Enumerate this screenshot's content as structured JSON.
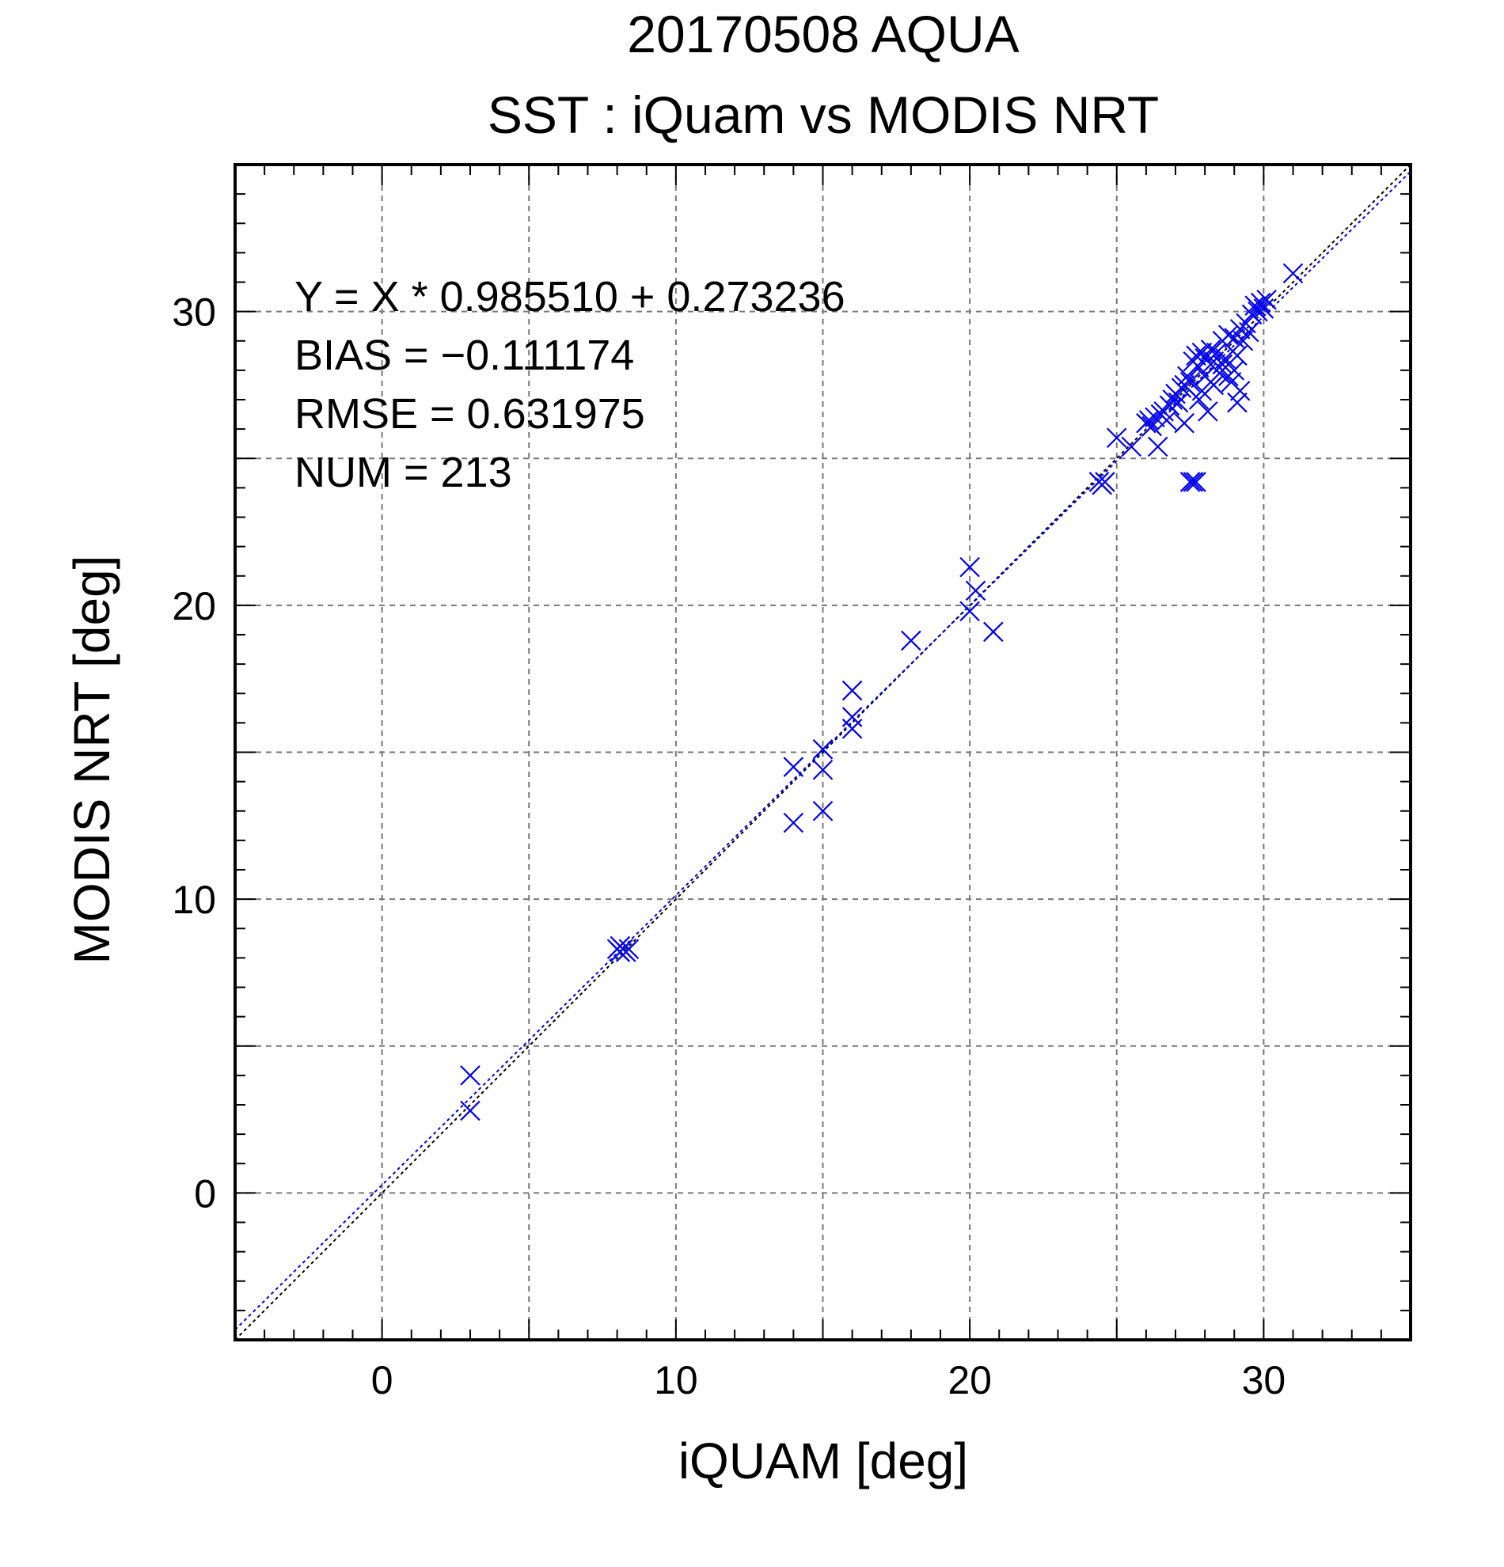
{
  "chart_data": {
    "type": "scatter",
    "title": "20170508 AQUA",
    "subtitle": "SST : iQuam vs MODIS NRT",
    "xlabel": "iQUAM [deg]",
    "ylabel": "MODIS NRT [deg]",
    "xlim": [
      -5,
      35
    ],
    "ylim": [
      -5,
      35
    ],
    "x_ticks": [
      0,
      10,
      20,
      30
    ],
    "y_ticks": [
      0,
      10,
      20,
      30
    ],
    "x_tick_labels": [
      "0",
      "10",
      "20",
      "30"
    ],
    "y_tick_labels": [
      "0",
      "10",
      "20",
      "30"
    ],
    "grid": true,
    "grid_step": 5,
    "minor_tick_step": 1,
    "marker": "x",
    "colors": {
      "points": "#0000ee",
      "fit_line": "#0000ee",
      "identity_line": "#000000",
      "grid": "#777777"
    },
    "stats": [
      "Y = X * 0.985510 + 0.273236",
      "BIAS = −0.111174",
      "RMSE = 0.631975",
      "NUM = 213"
    ],
    "fit": {
      "slope": 0.98551,
      "intercept": 0.273236
    },
    "identity": {
      "slope": 1,
      "intercept": 0
    },
    "points": [
      [
        3.0,
        4.0
      ],
      [
        3.0,
        2.8
      ],
      [
        8.0,
        8.3
      ],
      [
        8.1,
        8.4
      ],
      [
        8.2,
        8.3
      ],
      [
        8.3,
        8.2
      ],
      [
        8.4,
        8.3
      ],
      [
        8.1,
        8.2
      ],
      [
        14.0,
        14.5
      ],
      [
        14.0,
        12.6
      ],
      [
        15.0,
        15.1
      ],
      [
        15.0,
        14.4
      ],
      [
        15.0,
        13.0
      ],
      [
        16.0,
        17.1
      ],
      [
        16.0,
        16.2
      ],
      [
        16.0,
        15.8
      ],
      [
        18.0,
        18.8
      ],
      [
        20.0,
        21.3
      ],
      [
        20.0,
        19.8
      ],
      [
        20.2,
        20.5
      ],
      [
        20.8,
        19.1
      ],
      [
        24.4,
        24.2
      ],
      [
        24.5,
        24.1
      ],
      [
        24.6,
        24.2
      ],
      [
        25.0,
        25.7
      ],
      [
        25.5,
        25.4
      ],
      [
        26.0,
        26.2
      ],
      [
        26.1,
        26.3
      ],
      [
        26.2,
        26.1
      ],
      [
        26.3,
        26.4
      ],
      [
        26.4,
        25.4
      ],
      [
        26.5,
        26.5
      ],
      [
        26.6,
        26.6
      ],
      [
        26.7,
        26.3
      ],
      [
        26.8,
        26.8
      ],
      [
        26.9,
        27.0
      ],
      [
        27.0,
        27.2
      ],
      [
        27.1,
        26.9
      ],
      [
        27.2,
        27.4
      ],
      [
        27.3,
        27.5
      ],
      [
        27.3,
        26.2
      ],
      [
        27.4,
        27.8
      ],
      [
        27.5,
        27.6
      ],
      [
        27.5,
        24.2
      ],
      [
        27.6,
        24.2
      ],
      [
        27.7,
        24.2
      ],
      [
        27.6,
        28.3
      ],
      [
        27.7,
        28.5
      ],
      [
        27.8,
        28.1
      ],
      [
        27.9,
        28.6
      ],
      [
        28.0,
        28.4
      ],
      [
        28.0,
        27.8
      ],
      [
        28.1,
        26.6
      ],
      [
        27.8,
        27.0
      ],
      [
        28.2,
        28.7
      ],
      [
        28.3,
        28.3
      ],
      [
        28.4,
        28.6
      ],
      [
        28.5,
        27.9
      ],
      [
        28.6,
        29.0
      ],
      [
        28.7,
        28.4
      ],
      [
        28.8,
        29.2
      ],
      [
        28.9,
        27.6
      ],
      [
        29.0,
        29.1
      ],
      [
        29.0,
        28.0
      ],
      [
        29.1,
        26.9
      ],
      [
        29.2,
        27.3
      ],
      [
        29.2,
        29.4
      ],
      [
        29.3,
        29.0
      ],
      [
        29.4,
        29.6
      ],
      [
        29.5,
        29.3
      ],
      [
        29.6,
        29.9
      ],
      [
        29.7,
        30.2
      ],
      [
        29.8,
        30.0
      ],
      [
        29.9,
        30.3
      ],
      [
        30.0,
        30.1
      ],
      [
        30.1,
        30.4
      ],
      [
        31.0,
        31.3
      ],
      [
        28.3,
        27.5
      ],
      [
        28.6,
        28.2
      ],
      [
        27.9,
        27.3
      ],
      [
        29.1,
        28.5
      ],
      [
        28.8,
        27.8
      ]
    ]
  }
}
